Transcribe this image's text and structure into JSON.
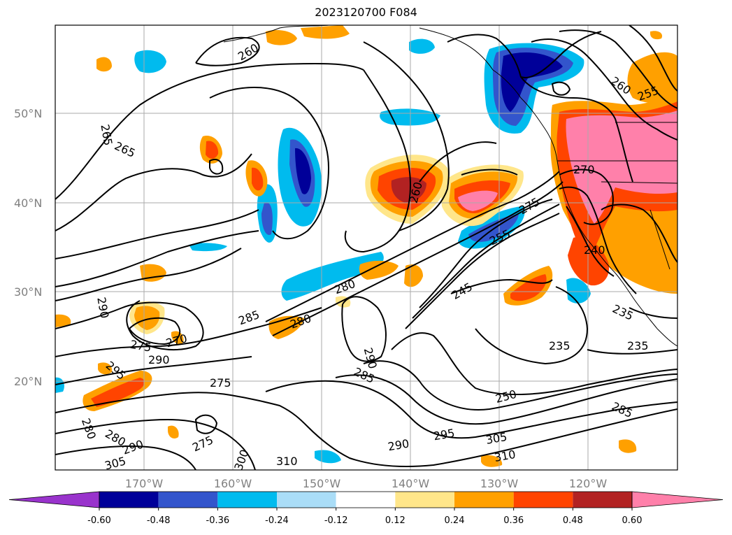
{
  "title": "2023120700 F084",
  "axes": {
    "lat_labels": [
      "50°N",
      "40°N",
      "30°N",
      "20°N"
    ],
    "lon_labels": [
      "170°W",
      "160°W",
      "150°W",
      "140°W",
      "130°W",
      "120°W"
    ],
    "grid": true
  },
  "contours": {
    "color": "#000000",
    "labels": [
      "265",
      "265",
      "260",
      "260",
      "255",
      "260",
      "270",
      "275",
      "280",
      "285",
      "280",
      "290",
      "270",
      "275",
      "290",
      "295",
      "275",
      "280",
      "290",
      "285",
      "245",
      "255",
      "240",
      "235",
      "235",
      "235",
      "250",
      "285",
      "290",
      "295",
      "305",
      "310",
      "310",
      "275",
      "280",
      "290",
      "300",
      "305"
    ]
  },
  "colorbar": {
    "extend": "both",
    "levels": [
      "-0.60",
      "-0.48",
      "-0.36",
      "-0.24",
      "-0.12",
      "0.12",
      "0.24",
      "0.36",
      "0.48",
      "0.60"
    ],
    "colors": [
      "#9933cc",
      "#000099",
      "#3355cc",
      "#00bbee",
      "#aaddf7",
      "#ffffff",
      "#ffe68a",
      "#ffa000",
      "#ff4400",
      "#b22222",
      "#ff80aa",
      "#ff80aa"
    ]
  }
}
